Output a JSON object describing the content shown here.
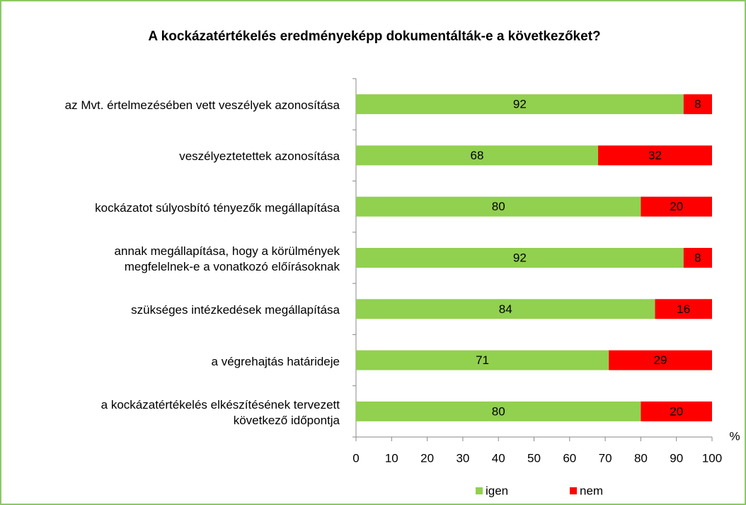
{
  "chart_data": {
    "type": "stacked_barh",
    "title": "A kockázatértékelés eredményeképp dokumentálták-e a következőket?",
    "categories": [
      "az Mvt. értelmezésében vett veszélyek azonosítása",
      "veszélyeztetettek azonosítása",
      "kockázatot súlyosbító tényezők megállapítása",
      "annak megállapítása, hogy a körülmények\nmegfelelnek-e a vonatkozó előírásoknak",
      "szükséges intézkedések megállapítása",
      "a végrehajtás határideje",
      "a kockázatértékelés elkészítésének tervezett\nkövetkező időpontja"
    ],
    "series": [
      {
        "name": "igen",
        "color": "#92d050",
        "values": [
          92,
          68,
          80,
          92,
          84,
          71,
          80
        ]
      },
      {
        "name": "nem",
        "color": "#ff0000",
        "values": [
          8,
          32,
          20,
          8,
          16,
          29,
          20
        ]
      }
    ],
    "x_unit_label": "%",
    "xlim": [
      0,
      100
    ],
    "xticks": [
      0,
      10,
      20,
      30,
      40,
      50,
      60,
      70,
      80,
      90,
      100
    ],
    "legend": "bottom"
  }
}
